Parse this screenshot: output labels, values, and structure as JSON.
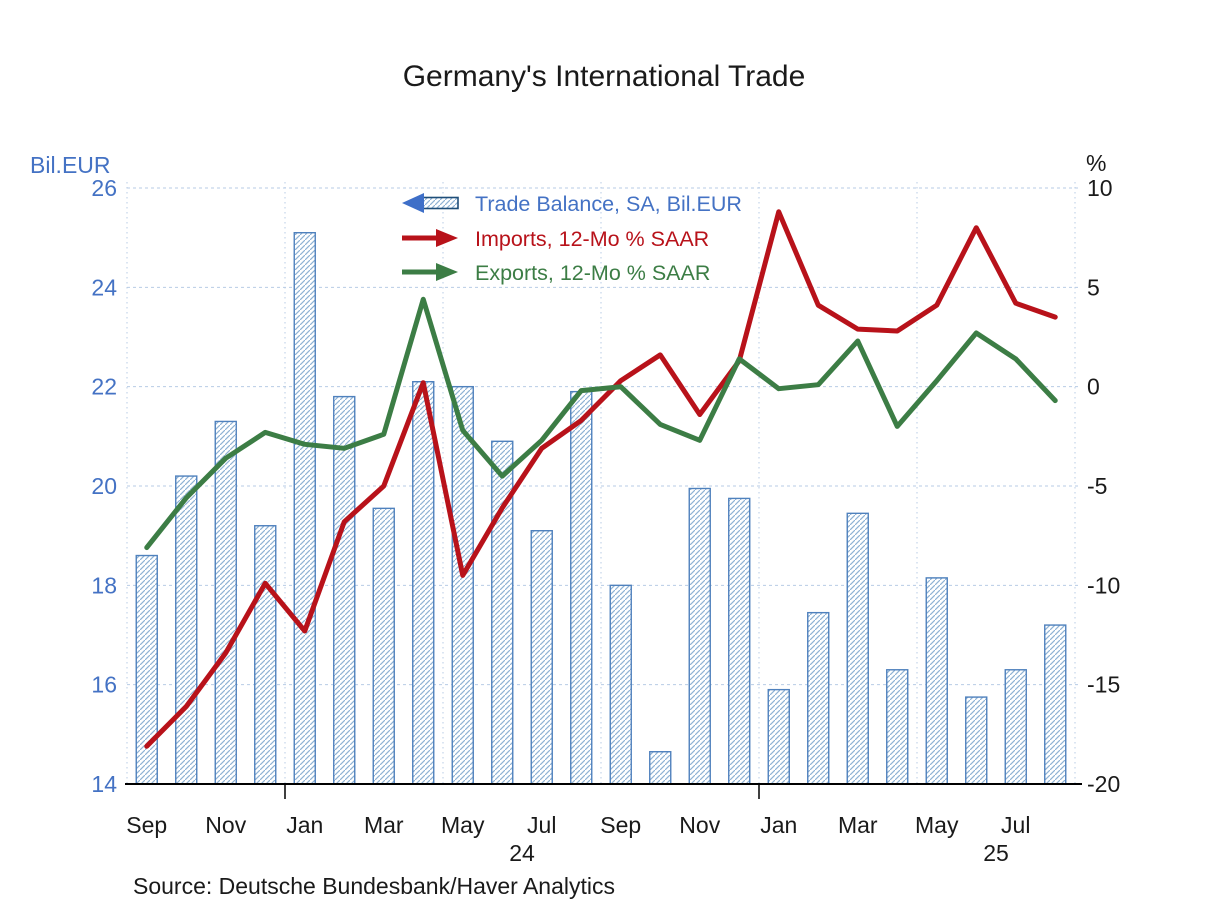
{
  "title": "Germany's International Trade",
  "source": "Source:  Deutsche Bundesbank/Haver Analytics",
  "left_axis": {
    "label": "Bil.EUR",
    "ticks": [
      26,
      24,
      22,
      20,
      18,
      16,
      14
    ],
    "min": 14,
    "max": 26,
    "color": "#4472C4"
  },
  "right_axis": {
    "label": "%",
    "ticks": [
      10,
      5,
      0,
      -5,
      -10,
      -15,
      -20
    ],
    "min": -20,
    "max": 10,
    "color": "#1a1a1a"
  },
  "x_axis": {
    "labels": [
      "Sep",
      "Nov",
      "Jan",
      "Mar",
      "May",
      "Jul",
      "Sep",
      "Nov",
      "Jan",
      "Mar",
      "May",
      "Jul"
    ],
    "year_labels": [
      {
        "text": "24",
        "boundary_month": 10
      },
      {
        "text": "25",
        "boundary_month": 22
      }
    ],
    "year_tick_months": [
      4,
      16
    ]
  },
  "legend": [
    {
      "label": "Trade Balance, SA, Bil.EUR",
      "marker": "bar-arrow-left",
      "color": "#4472C4",
      "arrow_fill": "#3E6FC8",
      "shaft_border": "#1F4E79"
    },
    {
      "label": "Imports, 12-Mo % SAAR",
      "marker": "line-arrow-right",
      "color": "#B8121A"
    },
    {
      "label": "Exports, 12-Mo % SAAR",
      "marker": "line-arrow-right",
      "color": "#3C7D45"
    }
  ],
  "colors": {
    "bar_edge": "#4F81BD",
    "bar_hatch": "#8FB2D4",
    "imports_line": "#B8121A",
    "exports_line": "#3C7D45",
    "gridline": "#B7CBE5",
    "axis_line": "#000000",
    "title_text": "#1a1a1a"
  },
  "chart_data": {
    "type": "combo",
    "title": "Germany's International Trade",
    "months": [
      "Sep 2023",
      "Oct 2023",
      "Nov 2023",
      "Dec 2023",
      "Jan 2024",
      "Feb 2024",
      "Mar 2024",
      "Apr 2024",
      "May 2024",
      "Jun 2024",
      "Jul 2024",
      "Aug 2024",
      "Sep 2024",
      "Oct 2024",
      "Nov 2024",
      "Dec 2024",
      "Jan 2025",
      "Feb 2025",
      "Mar 2025",
      "Apr 2025",
      "May 2025",
      "Jun 2025",
      "Jul 2025",
      "Aug 2025"
    ],
    "left_axis_range": [
      14,
      26
    ],
    "right_axis_range": [
      -20,
      10
    ],
    "grid": "dashed-horizontal, faint dotted vertical every 4 months",
    "legend_position": "top-center inside plot",
    "series": [
      {
        "name": "Trade Balance, SA, Bil.EUR",
        "type": "bar",
        "axis": "left",
        "values": [
          18.6,
          20.2,
          21.3,
          19.2,
          25.1,
          21.8,
          19.55,
          22.1,
          22.0,
          20.9,
          19.1,
          21.9,
          18.0,
          14.65,
          19.95,
          19.75,
          15.9,
          17.45,
          19.45,
          16.3,
          18.15,
          15.75,
          16.3,
          17.2
        ]
      },
      {
        "name": "Imports, 12-Mo % SAAR",
        "type": "line",
        "axis": "right",
        "values": [
          -18.1,
          -16.1,
          -13.4,
          -9.9,
          -12.3,
          -6.8,
          -5.0,
          0.2,
          -9.5,
          -6.1,
          -3.1,
          -1.7,
          0.3,
          1.6,
          -1.4,
          1.3,
          8.8,
          4.1,
          2.9,
          2.8,
          4.1,
          8.0,
          4.2,
          3.5
        ]
      },
      {
        "name": "Exports, 12-Mo % SAAR",
        "type": "line",
        "axis": "right",
        "values": [
          -8.1,
          -5.6,
          -3.6,
          -2.3,
          -2.9,
          -3.1,
          -2.4,
          4.4,
          -2.2,
          -4.5,
          -2.7,
          -0.2,
          0.0,
          -1.9,
          -2.7,
          1.4,
          -0.1,
          0.1,
          2.3,
          -2.0,
          0.3,
          2.7,
          1.4,
          -0.7
        ]
      }
    ]
  }
}
